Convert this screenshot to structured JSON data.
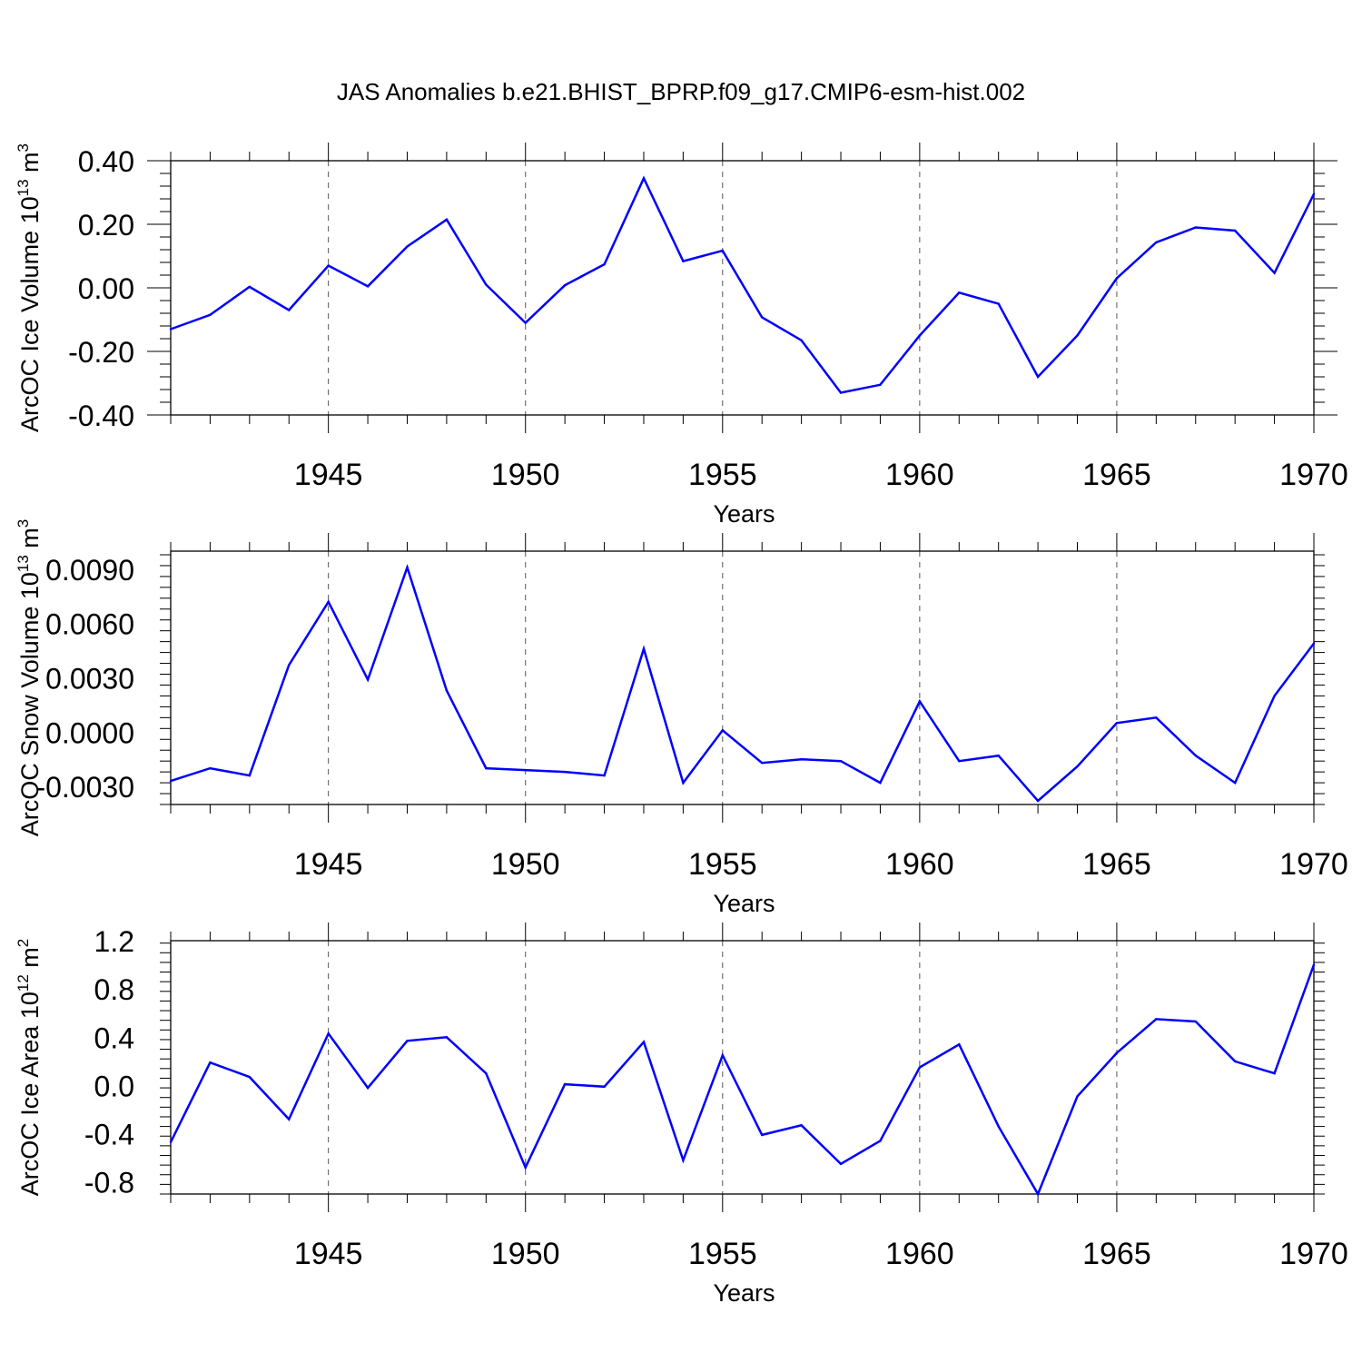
{
  "title": "JAS Anomalies b.e21.BHIST_BPRP.f09_g17.CMIP6-esm-hist.002",
  "colors": {
    "line": "#0000ff",
    "axis": "#000000",
    "grid": "#555555"
  },
  "chart_data": [
    {
      "type": "line",
      "ylabel": "ArcOC Ice Volume 10",
      "ylabel_sup": "13",
      "ylabel_unit": " m",
      "ylabel_unit_sup": "3",
      "xlabel": "Years",
      "xlim": [
        1941,
        1970
      ],
      "ylim": [
        -0.4,
        0.4
      ],
      "yticks": [
        -0.4,
        -0.2,
        0.0,
        0.2,
        0.4
      ],
      "ytick_labels": [
        "-0.40",
        "-0.20",
        "0.00",
        "0.20",
        "0.40"
      ],
      "xticks": [
        1945,
        1950,
        1955,
        1960,
        1965,
        1970
      ],
      "xtick_labels": [
        "1945",
        "1950",
        "1955",
        "1960",
        "1965",
        "1970"
      ],
      "grid_x": [
        1945,
        1950,
        1955,
        1960,
        1965
      ],
      "x": [
        1941,
        1942,
        1943,
        1944,
        1945,
        1946,
        1947,
        1948,
        1949,
        1950,
        1951,
        1952,
        1953,
        1954,
        1955,
        1956,
        1957,
        1958,
        1959,
        1960,
        1961,
        1962,
        1963,
        1964,
        1965,
        1966,
        1967,
        1968,
        1969,
        1970
      ],
      "values": [
        -0.13,
        -0.085,
        0.003,
        -0.07,
        0.07,
        0.005,
        0.13,
        0.215,
        0.01,
        -0.11,
        0.008,
        0.074,
        0.345,
        0.084,
        0.117,
        -0.093,
        -0.165,
        -0.33,
        -0.305,
        -0.15,
        -0.015,
        -0.05,
        -0.28,
        -0.15,
        0.03,
        0.143,
        0.19,
        0.18,
        0.047,
        0.295
      ]
    },
    {
      "type": "line",
      "ylabel": "ArcOC Snow Volume 10",
      "ylabel_sup": "13",
      "ylabel_unit": " m",
      "ylabel_unit_sup": "3",
      "xlabel": "Years",
      "xlim": [
        1941,
        1970
      ],
      "ylim": [
        -0.004,
        0.01
      ],
      "yticks": [
        -0.003,
        0.0,
        0.003,
        0.006,
        0.009
      ],
      "ytick_labels": [
        "-0.0030",
        "0.0000",
        "0.0030",
        "0.0060",
        "0.0090"
      ],
      "xticks": [
        1945,
        1950,
        1955,
        1960,
        1965,
        1970
      ],
      "xtick_labels": [
        "1945",
        "1950",
        "1955",
        "1960",
        "1965",
        "1970"
      ],
      "grid_x": [
        1945,
        1950,
        1955,
        1960,
        1965
      ],
      "x": [
        1941,
        1942,
        1943,
        1944,
        1945,
        1946,
        1947,
        1948,
        1949,
        1950,
        1951,
        1952,
        1953,
        1954,
        1955,
        1956,
        1957,
        1958,
        1959,
        1960,
        1961,
        1962,
        1963,
        1964,
        1965,
        1966,
        1967,
        1968,
        1969,
        1970
      ],
      "values": [
        -0.0027,
        -0.002,
        -0.0024,
        0.0037,
        0.0072,
        0.0029,
        0.0091,
        0.0023,
        -0.002,
        -0.0021,
        -0.0022,
        -0.0024,
        0.0046,
        -0.0028,
        0.0001,
        -0.0017,
        -0.0015,
        -0.0016,
        -0.0028,
        0.0017,
        -0.0016,
        -0.0013,
        -0.0038,
        -0.0019,
        0.0005,
        0.0008,
        -0.0013,
        -0.0028,
        0.002,
        0.0049
      ]
    },
    {
      "type": "line",
      "ylabel": "ArcOC Ice Area 10",
      "ylabel_sup": "12",
      "ylabel_unit": " m",
      "ylabel_unit_sup": "2",
      "xlabel": "Years",
      "xlim": [
        1941,
        1970
      ],
      "ylim": [
        -0.9,
        1.2
      ],
      "yticks": [
        -0.8,
        -0.4,
        0.0,
        0.4,
        0.8,
        1.2
      ],
      "ytick_labels": [
        "-0.8",
        "-0.4",
        "0.0",
        "0.4",
        "0.8",
        "1.2"
      ],
      "xticks": [
        1945,
        1950,
        1955,
        1960,
        1965,
        1970
      ],
      "xtick_labels": [
        "1945",
        "1950",
        "1955",
        "1960",
        "1965",
        "1970"
      ],
      "grid_x": [
        1945,
        1950,
        1955,
        1960,
        1965
      ],
      "x": [
        1941,
        1942,
        1943,
        1944,
        1945,
        1946,
        1947,
        1948,
        1949,
        1950,
        1951,
        1952,
        1953,
        1954,
        1955,
        1956,
        1957,
        1958,
        1959,
        1960,
        1961,
        1962,
        1963,
        1964,
        1965,
        1966,
        1967,
        1968,
        1969,
        1970
      ],
      "values": [
        -0.47,
        0.19,
        0.07,
        -0.28,
        0.43,
        -0.02,
        0.37,
        0.4,
        0.1,
        -0.68,
        0.01,
        -0.01,
        0.36,
        -0.62,
        0.25,
        -0.41,
        -0.33,
        -0.65,
        -0.46,
        0.15,
        0.34,
        -0.34,
        -0.9,
        -0.09,
        0.27,
        0.55,
        0.53,
        0.2,
        0.1,
        1.0
      ]
    }
  ]
}
